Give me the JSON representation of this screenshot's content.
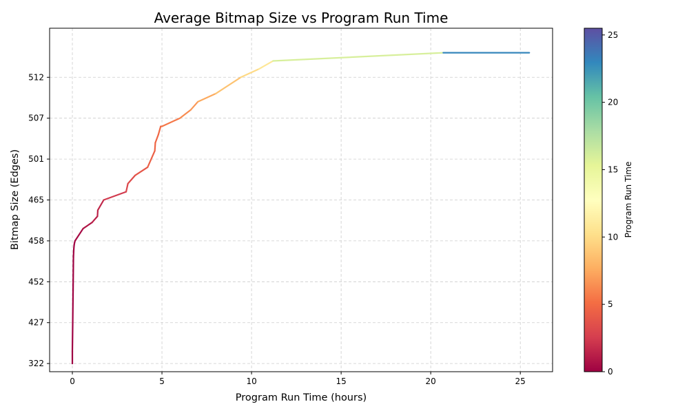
{
  "chart_data": {
    "type": "line",
    "title": "Average Bitmap Size vs Program Run Time",
    "xlabel": "Program Run Time (hours)",
    "ylabel": "Bitmap Size (Edges)",
    "xlim": [
      -1.27,
      26.8
    ],
    "x_ticks": [
      0,
      5,
      10,
      15,
      20,
      25
    ],
    "y_scale": "categorical",
    "y_categories": [
      "322",
      "427",
      "452",
      "458",
      "465",
      "501",
      "507",
      "512"
    ],
    "y_level_range": [
      -0.2,
      8.2
    ],
    "grid": true,
    "colorbar": {
      "label": "Program Run Time",
      "range": [
        0,
        25.5
      ],
      "ticks": [
        0,
        5,
        10,
        15,
        20,
        25
      ],
      "colormap": "Spectral"
    },
    "series": [
      {
        "x": [
          0,
          0,
          0.02,
          0.04,
          0.06,
          0.08,
          0.1,
          0.12,
          0.15,
          0.6,
          1.1,
          1.4,
          1.42,
          1.75,
          3.0,
          3.1,
          3.5,
          4.2,
          4.6,
          4.63,
          4.8,
          4.93,
          5.0,
          6.0,
          6.6,
          7.0,
          8.0,
          9.4,
          10.4,
          11.2,
          20.7,
          25.5
        ],
        "y_level": [
          0,
          0.3,
          1.0,
          1.8,
          2.6,
          2.8,
          2.9,
          2.95,
          3.0,
          3.3,
          3.45,
          3.6,
          3.75,
          4.0,
          4.2,
          4.4,
          4.6,
          4.8,
          5.2,
          5.4,
          5.6,
          5.8,
          5.8,
          6.0,
          6.2,
          6.4,
          6.6,
          7.0,
          7.2,
          7.4,
          7.6,
          7.6
        ]
      }
    ]
  }
}
